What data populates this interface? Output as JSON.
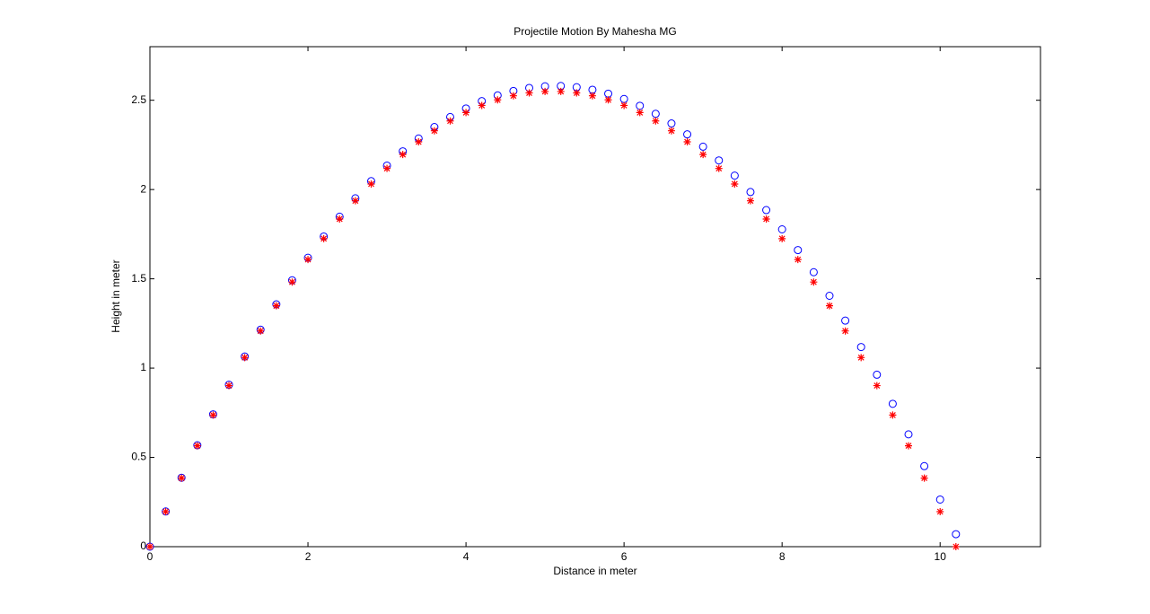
{
  "chart_data": {
    "type": "scatter",
    "title": "Projectile Motion By Mahesha MG",
    "x_label": "Distance in meter",
    "y_label": "Height in meter",
    "x": [
      0,
      0.2,
      0.4,
      0.6,
      0.8,
      1.0,
      1.2,
      1.4,
      1.6,
      1.8,
      2.0,
      2.2,
      2.4,
      2.6,
      2.8,
      3.0,
      3.2,
      3.4,
      3.6,
      3.8,
      4.0,
      4.2,
      4.4,
      4.6,
      4.8,
      5.0,
      5.2,
      5.4,
      5.6,
      5.8,
      6.0,
      6.2,
      6.4,
      6.6,
      6.8,
      7.0,
      7.2,
      7.4,
      7.6,
      7.8,
      8.0,
      8.2,
      8.4,
      8.6,
      8.8,
      9.0,
      9.2,
      9.4,
      9.6,
      9.8,
      10.0,
      10.2
    ],
    "series": [
      {
        "marker": "circle",
        "color": "#0000ff",
        "values": [
          0,
          0.197,
          0.386,
          0.568,
          0.741,
          0.907,
          1.065,
          1.215,
          1.357,
          1.492,
          1.618,
          1.737,
          1.848,
          1.951,
          2.047,
          2.134,
          2.214,
          2.286,
          2.35,
          2.406,
          2.454,
          2.495,
          2.527,
          2.552,
          2.569,
          2.578,
          2.58,
          2.573,
          2.559,
          2.537,
          2.507,
          2.469,
          2.424,
          2.37,
          2.309,
          2.24,
          2.163,
          2.078,
          1.986,
          1.885,
          1.777,
          1.661,
          1.537,
          1.405,
          1.266,
          1.118,
          0.963,
          0.8,
          0.629,
          0.451,
          0.264,
          0.07
        ]
      },
      {
        "marker": "star",
        "color": "#ff0000",
        "values": [
          0,
          0.196,
          0.384,
          0.565,
          0.737,
          0.902,
          1.059,
          1.208,
          1.349,
          1.482,
          1.608,
          1.725,
          1.835,
          1.937,
          2.031,
          2.118,
          2.196,
          2.267,
          2.329,
          2.384,
          2.431,
          2.471,
          2.502,
          2.525,
          2.541,
          2.549,
          2.549,
          2.541,
          2.525,
          2.502,
          2.471,
          2.431,
          2.384,
          2.329,
          2.267,
          2.196,
          2.118,
          2.031,
          1.937,
          1.835,
          1.725,
          1.608,
          1.482,
          1.349,
          1.208,
          1.059,
          0.902,
          0.737,
          0.565,
          0.384,
          0.196,
          0
        ]
      }
    ],
    "xlim": [
      0,
      11.27
    ],
    "xticks": [
      0,
      2,
      4,
      6,
      8,
      10
    ],
    "ylim": [
      0,
      2.8
    ],
    "yticks": [
      0,
      0.5,
      1,
      1.5,
      2,
      2.5
    ],
    "grid": false
  }
}
